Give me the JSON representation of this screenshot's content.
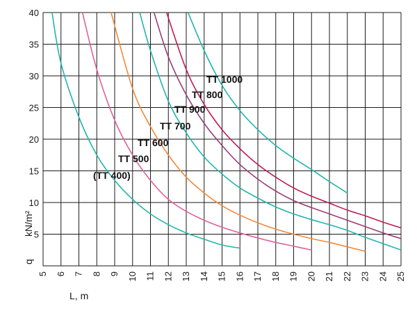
{
  "chart_data": {
    "type": "line",
    "xlabel": "L, m",
    "ylabel_parts": [
      "q",
      "kN/m²"
    ],
    "xlim": [
      5,
      25
    ],
    "ylim": [
      0,
      40
    ],
    "x_ticks": [
      5,
      6,
      7,
      8,
      9,
      10,
      11,
      12,
      13,
      14,
      15,
      16,
      17,
      18,
      19,
      20,
      21,
      22,
      23,
      24,
      25
    ],
    "y_ticks": [
      5,
      10,
      15,
      20,
      25,
      30,
      35,
      40
    ],
    "grid": true,
    "colors": {
      "cyan": "#1fb5ad",
      "pink": "#e0609a",
      "orange": "#f08a3c",
      "purple": "#9c3d78",
      "crimson": "#c01a50"
    },
    "series": [
      {
        "name": "(TT 400)",
        "color": "#1fb5ad",
        "x": [
          5.5,
          6,
          7,
          8,
          9,
          10,
          11,
          12,
          13,
          14,
          15,
          16
        ],
        "y": [
          40,
          32,
          23.5,
          17.5,
          13.5,
          10.5,
          8.2,
          6.5,
          5.2,
          4.2,
          3.3,
          2.8
        ]
      },
      {
        "name": "TT 500",
        "color": "#e0609a",
        "x": [
          7.2,
          8,
          9,
          10,
          11,
          12,
          13,
          14,
          15,
          16,
          17,
          18,
          19,
          20
        ],
        "y": [
          40,
          31,
          23,
          17.5,
          13.5,
          10.5,
          8.6,
          7.2,
          6.1,
          5.2,
          4.4,
          3.7,
          3.1,
          2.5
        ]
      },
      {
        "name": "TT 600",
        "color": "#f08a3c",
        "x": [
          8.8,
          10,
          11,
          12,
          13,
          14,
          15,
          16,
          17,
          18,
          19,
          20,
          21,
          22,
          23
        ],
        "y": [
          40,
          28,
          22,
          17.5,
          14,
          11.5,
          9.5,
          8,
          6.8,
          5.8,
          5,
          4.3,
          3.7,
          3,
          2.3
        ]
      },
      {
        "name": "TT 700",
        "color": "#1fb5ad",
        "x": [
          10.4,
          11,
          12,
          13,
          14,
          15,
          16,
          17,
          18,
          19,
          20,
          21,
          22,
          23,
          24,
          25
        ],
        "y": [
          40,
          34,
          26,
          21,
          17.2,
          14.5,
          12.3,
          10.7,
          9.3,
          8.2,
          7.3,
          6.5,
          5.6,
          4.5,
          3.5,
          2.5
        ]
      },
      {
        "name": "TT 900",
        "color": "#9c3d78",
        "x": [
          11.2,
          12,
          13,
          14,
          15,
          16,
          17,
          18,
          19,
          20,
          21,
          22,
          23,
          24,
          25
        ],
        "y": [
          40,
          33,
          27,
          22.5,
          19,
          16,
          13.7,
          11.8,
          10.3,
          9.2,
          8.2,
          7.2,
          6.2,
          5.2,
          4.3
        ]
      },
      {
        "name": "TT 800",
        "color": "#c01a50",
        "x": [
          11.9,
          13,
          14,
          15,
          16,
          17,
          18,
          19,
          20,
          21,
          22,
          23,
          24,
          25
        ],
        "y": [
          40,
          31,
          25.5,
          21.5,
          18.5,
          16,
          14,
          12.3,
          11,
          9.9,
          8.8,
          7.9,
          6.9,
          6
        ]
      },
      {
        "name": "TT 1000",
        "color": "#1fb5ad",
        "x": [
          13.1,
          14,
          15,
          16,
          17,
          18,
          19,
          20,
          21,
          22
        ],
        "y": [
          40,
          34,
          28.5,
          24.5,
          21.5,
          19,
          17,
          15.2,
          13.3,
          11.5
        ]
      }
    ]
  }
}
